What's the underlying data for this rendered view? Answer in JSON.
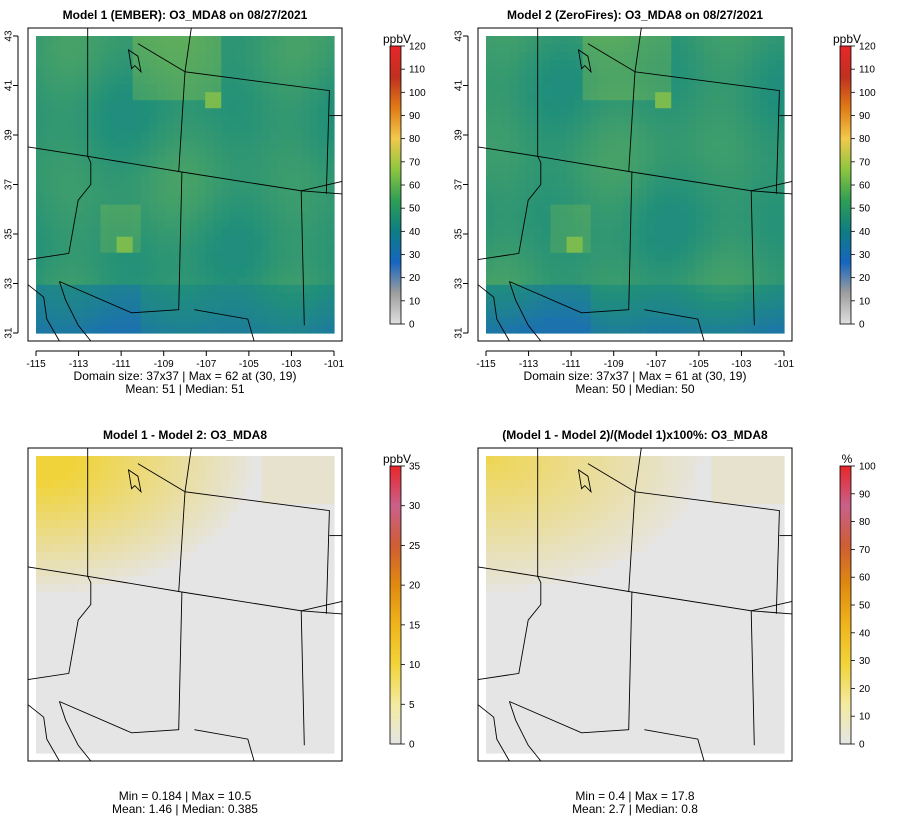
{
  "colors": {
    "plot_frame": "#000000",
    "map_outline": "#000000",
    "diff_fill": "#e5e5e5",
    "diff_yellow": "#f0d33a",
    "model_dark": "#1c72ad",
    "model_mid": "#208f7a",
    "model_light": "#7cbb4e"
  },
  "panels": [
    {
      "id": "p1",
      "title": "Model 1 (EMBER): O3_MDA8 on 08/27/2021",
      "kind": "model",
      "mean_scale": 1.0,
      "xticks": [
        "-115",
        "-113",
        "-111",
        "-109",
        "-107",
        "-105",
        "-103",
        "-101"
      ],
      "yticks": [
        "31",
        "33",
        "35",
        "37",
        "39",
        "41",
        "43"
      ],
      "stats_line1": "Domain size: 37x37 | Max = 62 at (30, 19)",
      "stats_line2": "Mean: 51 |  Median: 51",
      "legend": {
        "unit": "ppbV",
        "ticks": [
          "120",
          "110",
          "100",
          "90",
          "80",
          "70",
          "60",
          "50",
          "40",
          "30",
          "20",
          "10",
          "0"
        ],
        "stops": [
          "#e0e0e0",
          "#9e9e9e",
          "#1565c0",
          "#0e7d84",
          "#2e9e54",
          "#8dc63f",
          "#f2c94c",
          "#e07b16",
          "#c0301f",
          "#e8262a"
        ]
      }
    },
    {
      "id": "p2",
      "title": "Model 2 (ZeroFires): O3_MDA8 on 08/27/2021",
      "kind": "model",
      "mean_scale": 0.97,
      "xticks": [
        "-115",
        "-113",
        "-111",
        "-109",
        "-107",
        "-105",
        "-103",
        "-101"
      ],
      "yticks": [
        "31",
        "33",
        "35",
        "37",
        "39",
        "41",
        "43"
      ],
      "stats_line1": "Domain size: 37x37 | Max = 61 at (30, 19)",
      "stats_line2": "Mean: 50 |  Median: 50",
      "legend": {
        "unit": "ppbV",
        "ticks": [
          "120",
          "110",
          "100",
          "90",
          "80",
          "70",
          "60",
          "50",
          "40",
          "30",
          "20",
          "10",
          "0"
        ],
        "stops": [
          "#e0e0e0",
          "#9e9e9e",
          "#1565c0",
          "#0e7d84",
          "#2e9e54",
          "#8dc63f",
          "#f2c94c",
          "#e07b16",
          "#c0301f",
          "#e8262a"
        ]
      }
    },
    {
      "id": "p3",
      "title": "Model 1 - Model 2: O3_MDA8",
      "kind": "diff",
      "strength": 0.85,
      "stats_line1": "Min = 0.184 | Max = 10.5",
      "stats_line2": "Mean: 1.46 |  Median: 0.385",
      "legend": {
        "unit": "ppbV",
        "ticks": [
          "35",
          "30",
          "25",
          "20",
          "15",
          "10",
          "5",
          "0"
        ],
        "stops": [
          "#e5e5e5",
          "#f3eaa0",
          "#f2d43a",
          "#f0b41c",
          "#e08a10",
          "#cf5d33",
          "#c9608a",
          "#e8262a"
        ]
      }
    },
    {
      "id": "p4",
      "title": "(Model 1 - Model 2)/(Model 1)x100%: O3_MDA8",
      "kind": "diff",
      "strength": 0.6,
      "stats_line1": "Min = 0.4 | Max = 17.8",
      "stats_line2": "Mean: 2.7 |  Median: 0.8",
      "legend": {
        "unit": "%",
        "ticks": [
          "100",
          "90",
          "80",
          "70",
          "60",
          "50",
          "40",
          "30",
          "20",
          "10",
          "0"
        ],
        "stops": [
          "#e5e5e5",
          "#f3eaa0",
          "#f2d43a",
          "#f0b41c",
          "#e08a10",
          "#cf5d33",
          "#c9608a",
          "#e8262a"
        ]
      }
    }
  ],
  "chart_data": [
    {
      "type": "heatmap",
      "title": "Model 1 (EMBER): O3_MDA8 on 08/27/2021",
      "variable": "O3_MDA8",
      "date": "08/27/2021",
      "units": "ppbV",
      "grid": [
        37,
        37
      ],
      "xlim": [
        -115,
        -101
      ],
      "ylim": [
        31,
        43
      ],
      "color_range": [
        0,
        120
      ],
      "max": 62,
      "max_at": [
        30,
        19
      ],
      "mean": 51,
      "median": 51
    },
    {
      "type": "heatmap",
      "title": "Model 2 (ZeroFires): O3_MDA8 on 08/27/2021",
      "variable": "O3_MDA8",
      "date": "08/27/2021",
      "units": "ppbV",
      "grid": [
        37,
        37
      ],
      "xlim": [
        -115,
        -101
      ],
      "ylim": [
        31,
        43
      ],
      "color_range": [
        0,
        120
      ],
      "max": 61,
      "max_at": [
        30,
        19
      ],
      "mean": 50,
      "median": 50
    },
    {
      "type": "heatmap",
      "title": "Model 1 - Model 2: O3_MDA8",
      "units": "ppbV",
      "color_range": [
        0,
        35
      ],
      "min": 0.184,
      "max": 10.5,
      "mean": 1.46,
      "median": 0.385
    },
    {
      "type": "heatmap",
      "title": "(Model 1 - Model 2)/(Model 1)x100%: O3_MDA8",
      "units": "%",
      "color_range": [
        0,
        100
      ],
      "min": 0.4,
      "max": 17.8,
      "mean": 2.7,
      "median": 0.8
    }
  ]
}
